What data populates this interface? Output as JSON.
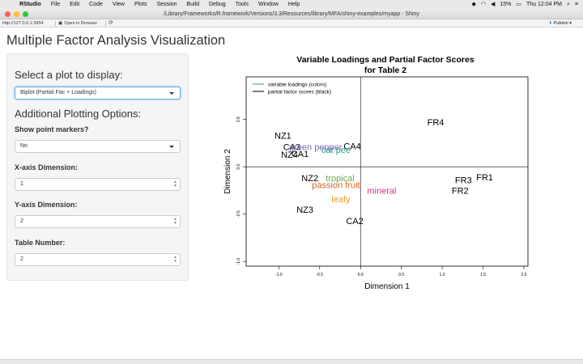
{
  "menubar": {
    "app_name": "RStudio",
    "items": [
      "File",
      "Edit",
      "Code",
      "View",
      "Plots",
      "Session",
      "Build",
      "Debug",
      "Tools",
      "Window",
      "Help"
    ],
    "battery": "15%",
    "clock": "Thu 12:04 PM"
  },
  "window": {
    "title": "/Library/Frameworks/R.framework/Versions/3.3/Resources/library/MFA/shiny-examples/myapp - Shiny"
  },
  "toolbar": {
    "url": "http://127.0.0.1:3954",
    "open_in_browser": "Open in Browser",
    "publish": "Publish"
  },
  "page": {
    "title": "Multiple Factor Analysis Visualization"
  },
  "sidebar": {
    "plot_select_heading": "Select a plot to display:",
    "plot_select_value": "Biplot (Partial Fac + Loadings)",
    "options_heading": "Additional Plotting Options:",
    "markers_label": "Show point markers?",
    "markers_value": "No",
    "xdim_label": "X-axis Dimension:",
    "xdim_value": "1",
    "ydim_label": "Y-axis Dimension:",
    "ydim_value": "2",
    "table_label": "Table Number:",
    "table_value": "2"
  },
  "chart_data": {
    "type": "scatter",
    "title": "Variable Loadings and Partial Factor Scores\nfor Table 2",
    "xlabel": "Dimension 1",
    "ylabel": "Dimension 2",
    "xlim": [
      -1.4,
      2.05
    ],
    "ylim": [
      -1.05,
      0.95
    ],
    "x_ticks": [
      -1.0,
      -0.5,
      0.0,
      0.5,
      1.0,
      1.5,
      2.0
    ],
    "y_ticks": [
      -1.0,
      -0.5,
      0.0,
      0.5
    ],
    "grid": false,
    "legend_position": "top-left",
    "legend": [
      {
        "label": "variable loadings (colors)",
        "color": "#2e9e8e"
      },
      {
        "label": "partial factor scores (black)",
        "color": "#000000"
      }
    ],
    "partial_factor_scores": [
      {
        "label": "FR4",
        "x": 0.92,
        "y": 0.47
      },
      {
        "label": "NZ1",
        "x": -0.95,
        "y": 0.33
      },
      {
        "label": "CA4",
        "x": -0.1,
        "y": 0.22
      },
      {
        "label": "CA3",
        "x": -0.84,
        "y": 0.21
      },
      {
        "label": "CA1",
        "x": -0.74,
        "y": 0.14
      },
      {
        "label": "NZ4",
        "x": -0.87,
        "y": 0.13
      },
      {
        "label": "NZ2",
        "x": -0.62,
        "y": -0.12
      },
      {
        "label": "FR1",
        "x": 1.52,
        "y": -0.11
      },
      {
        "label": "FR3",
        "x": 1.26,
        "y": -0.14
      },
      {
        "label": "FR2",
        "x": 1.22,
        "y": -0.25
      },
      {
        "label": "NZ3",
        "x": -0.68,
        "y": -0.45
      },
      {
        "label": "CA2",
        "x": -0.07,
        "y": -0.57
      }
    ],
    "variable_loadings": [
      {
        "label": "green pepper",
        "x": -0.55,
        "y": 0.21,
        "color": "#7b68b5"
      },
      {
        "label": "cat pee",
        "x": -0.3,
        "y": 0.18,
        "color": "#2e9e8e"
      },
      {
        "label": "tropical",
        "x": -0.25,
        "y": -0.12,
        "color": "#6aa84f"
      },
      {
        "label": "passion fruit",
        "x": -0.3,
        "y": -0.19,
        "color": "#d2691e"
      },
      {
        "label": "mineral",
        "x": 0.26,
        "y": -0.25,
        "color": "#d63384"
      },
      {
        "label": "leafy",
        "x": -0.24,
        "y": -0.34,
        "color": "#e6a020"
      }
    ]
  }
}
